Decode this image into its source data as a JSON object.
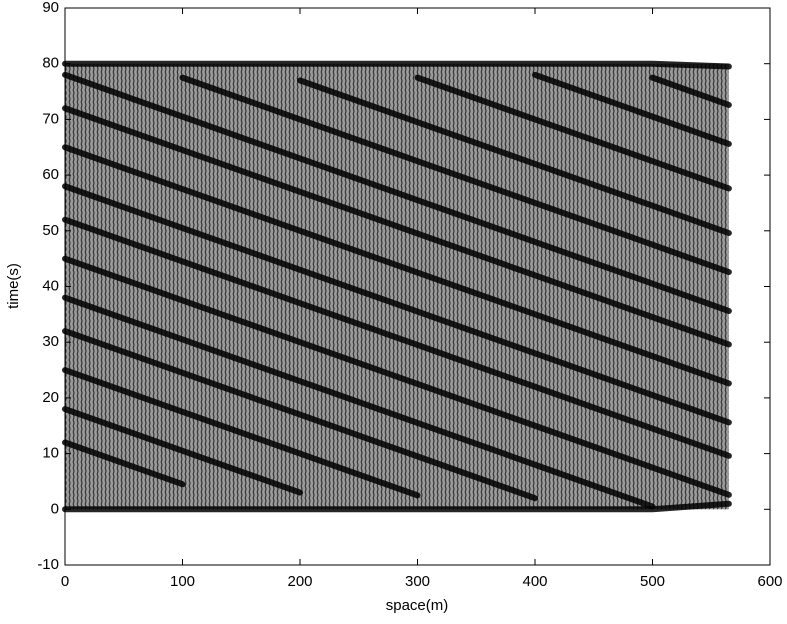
{
  "chart_data": {
    "type": "line",
    "xlabel": "space(m)",
    "ylabel": "time(s)",
    "x": [
      0,
      100,
      200,
      300,
      400,
      500,
      565
    ],
    "series": [
      {
        "color": "#000000",
        "values": [
          80,
          80,
          80,
          80,
          80,
          80,
          79.5
        ]
      },
      {
        "color": "#000000",
        "values": [
          0,
          0,
          0,
          0,
          0,
          0,
          1
        ]
      },
      {
        "color": "#000000",
        "values": [
          12,
          4.5,
          null,
          null,
          null,
          null,
          null
        ]
      },
      {
        "color": "#000000",
        "values": [
          18,
          10.5,
          3,
          null,
          null,
          null,
          null
        ]
      },
      {
        "color": "#000000",
        "values": [
          25,
          17.5,
          10,
          2.5,
          null,
          null,
          null
        ]
      },
      {
        "color": "#000000",
        "values": [
          32,
          24.5,
          17,
          9.5,
          2,
          null,
          null
        ]
      },
      {
        "color": "#000000",
        "values": [
          38,
          30.5,
          23,
          15.5,
          8,
          0.5,
          null
        ]
      },
      {
        "color": "#000000",
        "values": [
          45,
          37.5,
          30,
          22.5,
          15,
          7.5,
          2.6
        ]
      },
      {
        "color": "#000000",
        "values": [
          52,
          44.5,
          37,
          29.5,
          22,
          14.5,
          9.6
        ]
      },
      {
        "color": "#000000",
        "values": [
          58,
          50.5,
          43,
          35.5,
          28,
          20.5,
          15.6
        ]
      },
      {
        "color": "#000000",
        "values": [
          65,
          57.5,
          50,
          42.5,
          35,
          27.5,
          22.6
        ]
      },
      {
        "color": "#000000",
        "values": [
          72,
          64.5,
          57,
          49.5,
          42,
          34.5,
          29.6
        ]
      },
      {
        "color": "#000000",
        "values": [
          78,
          70.5,
          63,
          55.5,
          48,
          40.5,
          35.6
        ]
      },
      {
        "color": "#000000",
        "values": [
          null,
          77.5,
          70,
          62.5,
          55,
          47.5,
          42.6
        ]
      },
      {
        "color": "#000000",
        "values": [
          null,
          null,
          77,
          69.5,
          62,
          54.5,
          49.6
        ]
      },
      {
        "color": "#000000",
        "values": [
          null,
          null,
          null,
          77.5,
          70,
          62.5,
          57.6
        ]
      },
      {
        "color": "#000000",
        "values": [
          null,
          null,
          null,
          null,
          78,
          70.5,
          65.6
        ]
      },
      {
        "color": "#000000",
        "values": [
          null,
          null,
          null,
          null,
          null,
          77.5,
          72.6
        ]
      }
    ],
    "xlim": [
      0,
      600
    ],
    "xticks": [
      0,
      100,
      200,
      300,
      400,
      500,
      600
    ],
    "ylim": [
      -10,
      90
    ],
    "yticks": [
      -10,
      0,
      10,
      20,
      30,
      40,
      50,
      60,
      70,
      80,
      90
    ],
    "grid": false
  }
}
